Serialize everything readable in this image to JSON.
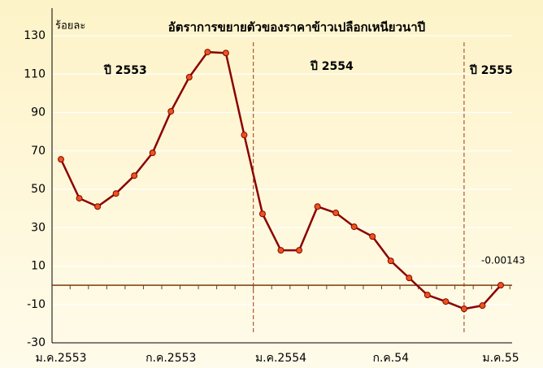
{
  "chart_data": {
    "type": "line",
    "title": "อัตราการขยายตัวของราคาข้าวเปลือกเหนียวนาปี",
    "y_label": "ร้อยละ",
    "annotations": [
      "ปี 2553",
      "ปี 2554",
      "ปี 2555"
    ],
    "categories": [
      "ม.ค.2553",
      null,
      null,
      null,
      null,
      null,
      "ก.ค.2553",
      null,
      null,
      null,
      null,
      null,
      "ม.ค.2554",
      null,
      null,
      null,
      null,
      null,
      "ก.ค.54",
      null,
      null,
      null,
      null,
      null,
      "ม.ค.55"
    ],
    "series": [
      {
        "name": "อัตราการขยายตัว",
        "color": "#8b0000",
        "marker_color": "#e8561c",
        "values": [
          65.6,
          45.3,
          41,
          47.8,
          57.1,
          69,
          90.6,
          108.4,
          121.5,
          121,
          78.3,
          37.2,
          18.2,
          18.2,
          41,
          37.7,
          30.5,
          25.4,
          12.7,
          3.8,
          -5.1,
          -8.5,
          -12.3,
          -10.6,
          -0.00143
        ],
        "value_labels": {
          "24": "-0.00143"
        }
      }
    ],
    "ylim": [
      -30,
      130
    ],
    "yticks": [
      -30,
      -10,
      10,
      30,
      50,
      70,
      90,
      110,
      130
    ],
    "grid": true
  }
}
